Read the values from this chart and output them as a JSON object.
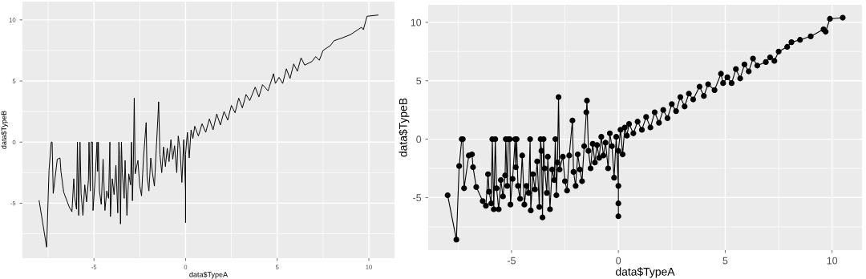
{
  "chart_data": [
    {
      "type": "line",
      "xlabel": "data$TypeA",
      "ylabel": "data$TypeB",
      "xlim": [
        -8.9,
        11.4
      ],
      "ylim": [
        -9.5,
        11.5
      ],
      "xticks": [
        -5,
        0,
        5,
        10
      ],
      "yticks": [
        -5,
        0,
        5,
        10
      ],
      "grid": true,
      "marker": "none",
      "series": [
        {
          "color": "#000000",
          "x": [
            -7.99,
            -7.58,
            -7.45,
            -7.33,
            -7.28,
            -7.22,
            -7.0,
            -6.85,
            -6.8,
            -6.65,
            -6.35,
            -6.2,
            -6.1,
            -6.05,
            -5.95,
            -5.9,
            -5.83,
            -5.76,
            -5.7,
            -5.6,
            -5.5,
            -5.4,
            -5.3,
            -5.27,
            -5.2,
            -5.15,
            -5.08,
            -5.05,
            -4.95,
            -4.83,
            -4.8,
            -4.76,
            -4.7,
            -4.6,
            -4.5,
            -4.4,
            -4.3,
            -4.2,
            -4.13,
            -4.1,
            -4.0,
            -3.9,
            -3.8,
            -3.7,
            -3.64,
            -3.6,
            -3.55,
            -3.5,
            -3.45,
            -3.35,
            -3.3,
            -3.2,
            -3.1,
            -3.0,
            -2.95,
            -2.9,
            -2.85,
            -2.8,
            -2.75,
            -2.6,
            -2.5,
            -2.4,
            -2.3,
            -2.15,
            -2.1,
            -2.0,
            -1.9,
            -1.8,
            -1.7,
            -1.6,
            -1.5,
            -1.47,
            -1.4,
            -1.3,
            -1.2,
            -1.1,
            -1.0,
            -0.9,
            -0.8,
            -0.7,
            -0.6,
            -0.48,
            -0.4,
            -0.3,
            -0.2,
            -0.1,
            0.0,
            0.0,
            0.0,
            0.0,
            0.1,
            0.2,
            0.3,
            0.4,
            0.5,
            0.7,
            0.9,
            1.1,
            1.3,
            1.5,
            1.7,
            1.9,
            2.1,
            2.3,
            2.5,
            2.7,
            2.9,
            3.1,
            3.3,
            3.5,
            3.8,
            4.0,
            4.2,
            4.5,
            4.8,
            4.9,
            5.1,
            5.3,
            5.5,
            5.7,
            5.9,
            6.1,
            6.3,
            6.5,
            6.9,
            7.1,
            7.3,
            7.5,
            7.9,
            8.1,
            8.5,
            9.0,
            9.6,
            9.7,
            9.9,
            10.5
          ],
          "values": [
            -4.8,
            -8.6,
            -2.3,
            0,
            0,
            -4.2,
            -1.4,
            -1.3,
            -2.4,
            -4.1,
            -5.3,
            -5.7,
            -3.0,
            -4.5,
            -5.5,
            0,
            -6.0,
            0,
            -4.2,
            -6.0,
            -3.5,
            -4.9,
            -3.1,
            0,
            -4.0,
            0,
            0,
            -5.6,
            -3.4,
            0,
            -2.4,
            0,
            -4.0,
            -5.1,
            -1.4,
            -5.6,
            -4.0,
            -4.6,
            0,
            -6.1,
            -3.0,
            -4.3,
            -1.9,
            -5.8,
            0,
            -1.0,
            -6.7,
            0,
            -2.5,
            -4.6,
            -1.5,
            -6.0,
            -2.6,
            -3.5,
            0,
            -4.8,
            -2.0,
            3.6,
            -2.6,
            -1.5,
            -3.6,
            -4.4,
            -1.4,
            1.6,
            -2.8,
            -4.0,
            -1.3,
            -2.6,
            -3.6,
            -0.6,
            2.3,
            3.3,
            -1.0,
            -2.5,
            -0.4,
            -2.0,
            -0.5,
            -1.6,
            0.2,
            -1.4,
            -0.3,
            -2.5,
            0.5,
            -0.6,
            -3.3,
            0.2,
            -4.0,
            -5.5,
            -6.6,
            -1.0,
            0.8,
            -1.3,
            1.0,
            0.3,
            1.3,
            0.5,
            1.5,
            0.8,
            1.9,
            1.0,
            2.3,
            1.4,
            2.5,
            1.8,
            3.0,
            2.4,
            3.6,
            2.8,
            3.9,
            3.4,
            4.5,
            3.7,
            4.7,
            4.2,
            5.6,
            4.8,
            5.3,
            4.8,
            6.0,
            5.2,
            6.4,
            5.8,
            6.9,
            6.3,
            6.6,
            7.0,
            6.7,
            7.5,
            7.9,
            8.3,
            8.5,
            8.8,
            9.4,
            9.2,
            10.3,
            10.4
          ]
        }
      ]
    },
    {
      "type": "line",
      "xlabel": "data$TypeA",
      "ylabel": "data$TypeB",
      "xlim": [
        -8.9,
        11.4
      ],
      "ylim": [
        -9.5,
        11.5
      ],
      "xticks": [
        -5,
        0,
        5,
        10
      ],
      "yticks": [
        -5,
        0,
        5,
        10
      ],
      "grid": true,
      "marker": "circle",
      "series": [
        {
          "color": "#000000",
          "x": [
            -7.99,
            -7.58,
            -7.45,
            -7.33,
            -7.28,
            -7.22,
            -7.0,
            -6.85,
            -6.8,
            -6.65,
            -6.35,
            -6.2,
            -6.1,
            -6.05,
            -5.95,
            -5.9,
            -5.83,
            -5.76,
            -5.7,
            -5.6,
            -5.5,
            -5.4,
            -5.3,
            -5.27,
            -5.2,
            -5.15,
            -5.08,
            -5.05,
            -4.95,
            -4.83,
            -4.8,
            -4.76,
            -4.7,
            -4.6,
            -4.5,
            -4.4,
            -4.3,
            -4.2,
            -4.13,
            -4.1,
            -4.0,
            -3.9,
            -3.8,
            -3.7,
            -3.64,
            -3.6,
            -3.55,
            -3.5,
            -3.45,
            -3.35,
            -3.3,
            -3.2,
            -3.1,
            -3.0,
            -2.95,
            -2.9,
            -2.85,
            -2.8,
            -2.75,
            -2.6,
            -2.5,
            -2.4,
            -2.3,
            -2.15,
            -2.1,
            -2.0,
            -1.9,
            -1.8,
            -1.7,
            -1.6,
            -1.5,
            -1.47,
            -1.4,
            -1.3,
            -1.2,
            -1.1,
            -1.0,
            -0.9,
            -0.8,
            -0.7,
            -0.6,
            -0.48,
            -0.4,
            -0.3,
            -0.2,
            -0.1,
            0.0,
            0.0,
            0.0,
            0.0,
            0.1,
            0.2,
            0.3,
            0.4,
            0.5,
            0.7,
            0.9,
            1.1,
            1.3,
            1.5,
            1.7,
            1.9,
            2.1,
            2.3,
            2.5,
            2.7,
            2.9,
            3.1,
            3.3,
            3.5,
            3.8,
            4.0,
            4.2,
            4.5,
            4.8,
            4.9,
            5.1,
            5.3,
            5.5,
            5.7,
            5.9,
            6.1,
            6.3,
            6.5,
            6.9,
            7.1,
            7.3,
            7.5,
            7.9,
            8.1,
            8.5,
            9.0,
            9.6,
            9.7,
            9.9,
            10.5
          ],
          "values": [
            -4.8,
            -8.6,
            -2.3,
            0,
            0,
            -4.2,
            -1.4,
            -1.3,
            -2.4,
            -4.1,
            -5.3,
            -5.7,
            -3.0,
            -4.5,
            -5.5,
            0,
            -6.0,
            0,
            -4.2,
            -6.0,
            -3.5,
            -4.9,
            -3.1,
            0,
            -4.0,
            0,
            0,
            -5.6,
            -3.4,
            0,
            -2.4,
            0,
            -4.0,
            -5.1,
            -1.4,
            -5.6,
            -4.0,
            -4.6,
            0,
            -6.1,
            -3.0,
            -4.3,
            -1.9,
            -5.8,
            0,
            -1.0,
            -6.7,
            0,
            -2.5,
            -4.6,
            -1.5,
            -6.0,
            -2.6,
            -3.5,
            0,
            -4.8,
            -2.0,
            3.6,
            -2.6,
            -1.5,
            -3.6,
            -4.4,
            -1.4,
            1.6,
            -2.8,
            -4.0,
            -1.3,
            -2.6,
            -3.6,
            -0.6,
            2.3,
            3.3,
            -1.0,
            -2.5,
            -0.4,
            -2.0,
            -0.5,
            -1.6,
            0.2,
            -1.4,
            -0.3,
            -2.5,
            0.5,
            -0.6,
            -3.3,
            0.2,
            -4.0,
            -5.5,
            -6.6,
            -1.0,
            0.8,
            -1.3,
            1.0,
            0.3,
            1.3,
            0.5,
            1.5,
            0.8,
            1.9,
            1.0,
            2.3,
            1.4,
            2.5,
            1.8,
            3.0,
            2.4,
            3.6,
            2.8,
            3.9,
            3.4,
            4.5,
            3.7,
            4.7,
            4.2,
            5.6,
            4.8,
            5.3,
            4.8,
            6.0,
            5.2,
            6.4,
            5.8,
            6.9,
            6.3,
            6.6,
            7.0,
            6.7,
            7.5,
            7.9,
            8.3,
            8.5,
            8.8,
            9.4,
            9.2,
            10.3,
            10.4
          ]
        }
      ]
    }
  ]
}
